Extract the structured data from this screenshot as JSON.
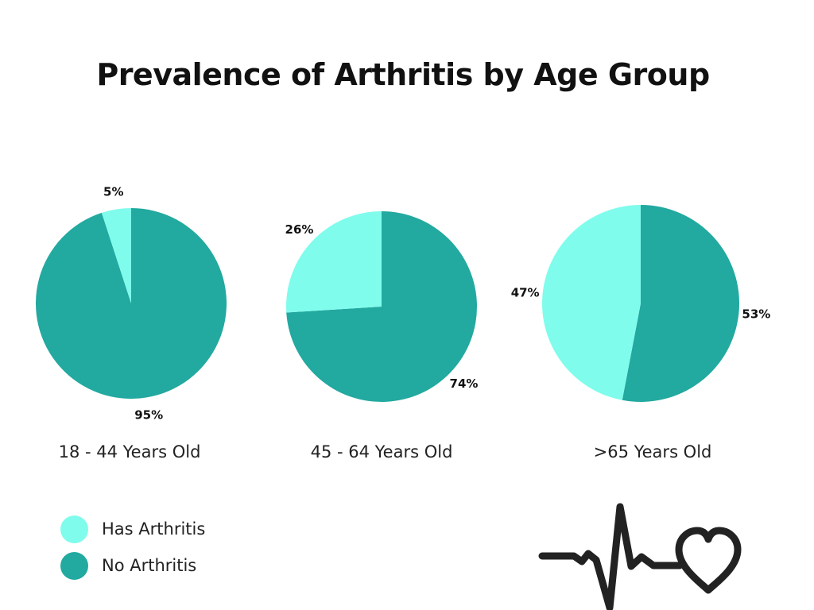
{
  "chart_data": {
    "type": "pie",
    "title": "Prevalence of Arthritis by Age Group",
    "colors": {
      "has": "#7ffcec",
      "no": "#22a9a0"
    },
    "legend": [
      {
        "key": "has",
        "label": "Has Arthritis"
      },
      {
        "key": "no",
        "label": "No Arthritis"
      }
    ],
    "legend_position": "bottom-left",
    "pies": [
      {
        "group": "18 - 44 Years Old",
        "slices": [
          {
            "key": "has",
            "value": 5,
            "label": "5%"
          },
          {
            "key": "no",
            "value": 95,
            "label": "95%"
          }
        ]
      },
      {
        "group": "45 - 64 Years Old",
        "slices": [
          {
            "key": "has",
            "value": 26,
            "label": "26%"
          },
          {
            "key": "no",
            "value": 74,
            "label": "74%"
          }
        ]
      },
      {
        "group": ">65 Years Old",
        "slices": [
          {
            "key": "has",
            "value": 47,
            "label": "47%"
          },
          {
            "key": "no",
            "value": 53,
            "label": "53%"
          }
        ]
      }
    ]
  },
  "decoration": {
    "icon": "heartbeat-heart-icon"
  }
}
